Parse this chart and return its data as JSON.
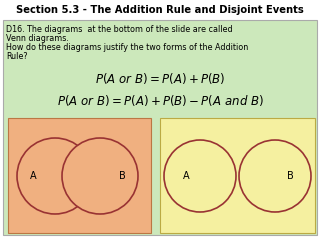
{
  "title": "Section 5.3 - The Addition Rule and Disjoint Events",
  "body_line1": "D16. The diagrams  at the bottom of the slide are called",
  "body_line2": "Venn diagrams.",
  "body_line3": "How do these diagrams justify the two forms of the Addition",
  "body_line4": "Rule?",
  "background_color": "#ffffff",
  "content_bg": "#cce8bb",
  "venn_left_bg": "#f0b080",
  "venn_right_bg": "#f5f0a0",
  "circle_edge": "#993333",
  "text_color": "#000000",
  "title_fontsize": 7.2,
  "body_fontsize": 5.8,
  "formula_fontsize": 8.5
}
